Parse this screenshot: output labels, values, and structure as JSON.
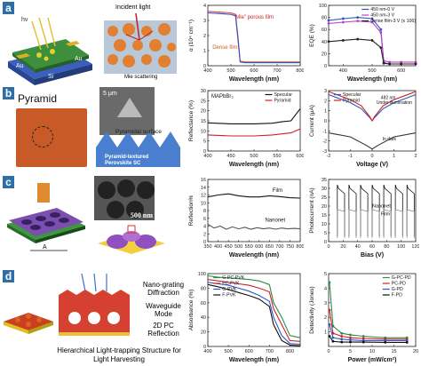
{
  "panels": {
    "a": {
      "label": "a",
      "hv": "hv",
      "incident": "Incident light",
      "mie": "Mie scattering",
      "au1": "Au",
      "au2": "Au",
      "si": "Si"
    },
    "b": {
      "label": "b",
      "pyramid": "Pyramid",
      "scale": "5 μm",
      "surface": "Pyramidal surface",
      "textured": "Pyramid-textured Perovskite SC"
    },
    "c": {
      "label": "c",
      "scale": "500 nm",
      "a_label": "A"
    },
    "d": {
      "label": "d",
      "nano": "Nano-grating Diffraction",
      "wave": "Waveguide Mode",
      "pc": "2D PC Reflection",
      "hier1": "Hierarchical Light-trapping Structure for",
      "hier2": "Light Harvesting"
    }
  },
  "chart_data": [
    {
      "id": "a-absorption",
      "type": "line",
      "ylabel": "α (10⁴ cm⁻¹)",
      "xlabel": "Wavelength (nm)",
      "xlim": [
        400,
        800
      ],
      "xticks": [
        400,
        500,
        600,
        700,
        800
      ],
      "ylim": [
        0,
        4
      ],
      "yticks": [
        0,
        1,
        2,
        3,
        4
      ],
      "series": [
        {
          "name": "\"Mie\" porous film",
          "color": "#e04040",
          "x": [
            400,
            450,
            500,
            520,
            530,
            540,
            560,
            600,
            700,
            800
          ],
          "y": [
            3.6,
            3.55,
            3.5,
            3.4,
            2.0,
            0.3,
            0.25,
            0.25,
            0.25,
            0.25
          ]
        },
        {
          "name": "Dense film",
          "color": "#2f55c9",
          "x": [
            400,
            450,
            500,
            520,
            530,
            540,
            560,
            600,
            700,
            800
          ],
          "y": [
            3.5,
            3.45,
            3.4,
            3.3,
            1.8,
            0.25,
            0.2,
            0.2,
            0.2,
            0.2
          ]
        }
      ],
      "annotations": {
        "mie": "\"Mie\" porous film",
        "dense": "Dense film"
      }
    },
    {
      "id": "a-eqe",
      "type": "line",
      "ylabel": "EQE (%)",
      "xlabel": "Wavelength (nm)",
      "xlim": [
        350,
        650
      ],
      "xticks": [
        400,
        500,
        600
      ],
      "ylim": [
        0,
        100
      ],
      "yticks": [
        0,
        20,
        40,
        60,
        80,
        100
      ],
      "series": [
        {
          "name": "450 nm-0 V",
          "color": "#2f55c9",
          "x": [
            350,
            400,
            450,
            500,
            530,
            540,
            560,
            600,
            650
          ],
          "y": [
            75,
            78,
            80,
            78,
            60,
            5,
            3,
            3,
            3
          ]
        },
        {
          "name": "450 nm-3 V",
          "color": "#c040c0",
          "x": [
            350,
            400,
            450,
            500,
            530,
            540,
            560,
            600,
            650
          ],
          "y": [
            70,
            72,
            74,
            72,
            55,
            8,
            6,
            6,
            6
          ]
        },
        {
          "name": "dense film-3 V (x 106)",
          "color": "#222222",
          "x": [
            350,
            400,
            450,
            500,
            530,
            540,
            560,
            600,
            650
          ],
          "y": [
            40,
            42,
            44,
            42,
            30,
            4,
            3,
            3,
            3
          ]
        }
      ]
    },
    {
      "id": "b-reflectance",
      "type": "line",
      "ylabel": "Reflectance (%)",
      "xlabel": "Wavelength (nm)",
      "title": "MAPbBr₃",
      "xlim": [
        400,
        600
      ],
      "xticks": [
        400,
        450,
        500,
        550,
        600
      ],
      "ylim": [
        0,
        30
      ],
      "yticks": [
        0,
        5,
        10,
        15,
        20,
        25,
        30
      ],
      "series": [
        {
          "name": "Specular",
          "color": "#111111",
          "x": [
            400,
            450,
            500,
            540,
            560,
            580,
            600
          ],
          "y": [
            14,
            13.5,
            13.5,
            13.8,
            14.5,
            15,
            21
          ]
        },
        {
          "name": "Pyramid",
          "color": "#d02020",
          "x": [
            400,
            450,
            500,
            540,
            560,
            580,
            600
          ],
          "y": [
            8,
            7.5,
            7.5,
            8,
            8.5,
            9,
            11
          ]
        }
      ]
    },
    {
      "id": "b-iv",
      "type": "line",
      "ylabel": "Current (μA)",
      "xlabel": "Voltage (V)",
      "xlim": [
        -2,
        2
      ],
      "xticks": [
        -2,
        -1,
        0,
        1,
        2
      ],
      "ylim": [
        -3,
        3
      ],
      "yticks": [
        -3,
        -2,
        -1,
        0,
        1,
        2,
        3
      ],
      "annotations": {
        "wl": "482 nm",
        "illum": "Under illumination",
        "dark": "In dark"
      },
      "series": [
        {
          "name": "Specular",
          "color": "#2f55c9",
          "x": [
            -2,
            -1.5,
            -1,
            -0.5,
            -0.1,
            0,
            0.1,
            0.5,
            1,
            1.5,
            2
          ],
          "y": [
            2.6,
            2.2,
            1.8,
            1.2,
            0.3,
            0,
            0.3,
            1.2,
            1.8,
            2.2,
            2.6
          ]
        },
        {
          "name": "Pyramid",
          "color": "#d02020",
          "x": [
            -2,
            -1.5,
            -1,
            -0.5,
            -0.1,
            0,
            0.1,
            0.5,
            1,
            1.5,
            2
          ],
          "y": [
            2.9,
            2.5,
            2.1,
            1.5,
            0.4,
            0,
            0.4,
            1.5,
            2.1,
            2.5,
            2.9
          ]
        },
        {
          "name": "dark",
          "color": "#333333",
          "x": [
            -2,
            -1,
            -0.3,
            0,
            0.3,
            1,
            2
          ],
          "y": [
            -1.2,
            -1.6,
            -2.4,
            -2.8,
            -2.4,
            -1.6,
            -1.2
          ]
        }
      ]
    },
    {
      "id": "c-reflection",
      "type": "line",
      "ylabel": "Reflection%",
      "xlabel": "Wavelength (nm)",
      "xlim": [
        350,
        800
      ],
      "xticks": [
        350,
        400,
        450,
        500,
        550,
        600,
        650,
        700,
        750,
        800
      ],
      "ylim": [
        0,
        16
      ],
      "yticks": [
        0,
        2,
        4,
        6,
        8,
        10,
        12,
        14,
        16
      ],
      "series": [
        {
          "name": "Film",
          "color": "#111111",
          "x": [
            350,
            400,
            450,
            500,
            550,
            600,
            650,
            700,
            750,
            800
          ],
          "y": [
            11.5,
            12,
            12.3,
            11.8,
            11.5,
            11.5,
            11.8,
            11.6,
            11.3,
            11.2
          ]
        },
        {
          "name": "Nanonet",
          "color": "#555555",
          "x": [
            350,
            380,
            410,
            440,
            470,
            500,
            530,
            560,
            590,
            620,
            650,
            680,
            710,
            740,
            770,
            800
          ],
          "y": [
            4.5,
            3.5,
            4,
            3.2,
            3.8,
            3.3,
            3.7,
            3.2,
            3.6,
            3.3,
            3.5,
            3.2,
            3.5,
            3.3,
            3.4,
            3.3
          ]
        }
      ],
      "annotations": {
        "film": "Film",
        "nanonet": "Nanonet"
      }
    },
    {
      "id": "c-photocurrent",
      "type": "line",
      "ylabel": "Photocurrent (nA)",
      "xlabel": "Bias (V)",
      "xlim": [
        0,
        120
      ],
      "xticks": [
        0,
        20,
        40,
        60,
        80,
        100,
        120
      ],
      "ylim": [
        0,
        35
      ],
      "yticks": [
        0,
        5,
        10,
        15,
        20,
        25,
        30,
        35
      ],
      "series": [
        {
          "name": "Nanonet",
          "color": "#111111"
        },
        {
          "name": "Film",
          "color": "#777777"
        }
      ],
      "annotations": {
        "nanonet": "Nanonet",
        "film": "Film"
      }
    },
    {
      "id": "d-absorbance",
      "type": "line",
      "ylabel": "Absorbance (%)",
      "xlabel": "Wavelength (nm)",
      "xlim": [
        400,
        850
      ],
      "xticks": [
        400,
        500,
        600,
        700,
        800
      ],
      "ylim": [
        0,
        100
      ],
      "yticks": [
        0,
        20,
        40,
        60,
        80,
        100
      ],
      "series": [
        {
          "name": "G-PC-PVK",
          "color": "#2a8c4a",
          "x": [
            400,
            450,
            500,
            550,
            600,
            650,
            700,
            720,
            760,
            800,
            850
          ],
          "y": [
            97,
            95,
            94,
            93,
            92,
            90,
            85,
            60,
            40,
            15,
            12
          ]
        },
        {
          "name": "PC-PVK",
          "color": "#d02020",
          "x": [
            400,
            450,
            500,
            550,
            600,
            650,
            700,
            720,
            760,
            800,
            850
          ],
          "y": [
            92,
            90,
            88,
            86,
            84,
            80,
            75,
            52,
            30,
            8,
            7
          ]
        },
        {
          "name": "G-PVK",
          "color": "#2f55c9",
          "x": [
            400,
            450,
            500,
            550,
            600,
            650,
            700,
            720,
            760,
            800,
            850
          ],
          "y": [
            88,
            86,
            84,
            80,
            76,
            70,
            62,
            40,
            15,
            4,
            3
          ]
        },
        {
          "name": "F-PVK",
          "color": "#111111",
          "x": [
            400,
            450,
            500,
            550,
            600,
            650,
            700,
            720,
            760,
            800,
            850
          ],
          "y": [
            85,
            82,
            78,
            74,
            70,
            65,
            55,
            30,
            8,
            2,
            1
          ]
        }
      ]
    },
    {
      "id": "d-detectivity",
      "type": "line",
      "ylabel": "Detectivity (Jones)",
      "xlabel": "Power (mW/cm²)",
      "xlim": [
        0,
        20
      ],
      "xticks": [
        0,
        5,
        10,
        15,
        20
      ],
      "ylim": [
        0,
        5
      ],
      "yticks": [
        1,
        2,
        3,
        4,
        5
      ],
      "series": [
        {
          "name": "G-PC-PD",
          "color": "#2a8c4a",
          "x": [
            0.2,
            1,
            3,
            5,
            8,
            13,
            18
          ],
          "y": [
            4.4,
            1.4,
            0.9,
            0.8,
            0.7,
            0.6,
            0.6
          ]
        },
        {
          "name": "PC-PD",
          "color": "#d02020",
          "x": [
            0.2,
            1,
            3,
            5,
            8,
            13,
            18
          ],
          "y": [
            2.5,
            0.9,
            0.7,
            0.6,
            0.55,
            0.5,
            0.5
          ]
        },
        {
          "name": "G-PD",
          "color": "#2f55c9",
          "x": [
            0.2,
            1,
            3,
            5,
            8,
            13,
            18
          ],
          "y": [
            1.5,
            0.6,
            0.5,
            0.45,
            0.4,
            0.4,
            0.4
          ]
        },
        {
          "name": "F-PD",
          "color": "#111111",
          "x": [
            0.2,
            1,
            3,
            5,
            8,
            13,
            18
          ],
          "y": [
            0.7,
            0.35,
            0.3,
            0.3,
            0.3,
            0.28,
            0.28
          ]
        }
      ]
    }
  ]
}
